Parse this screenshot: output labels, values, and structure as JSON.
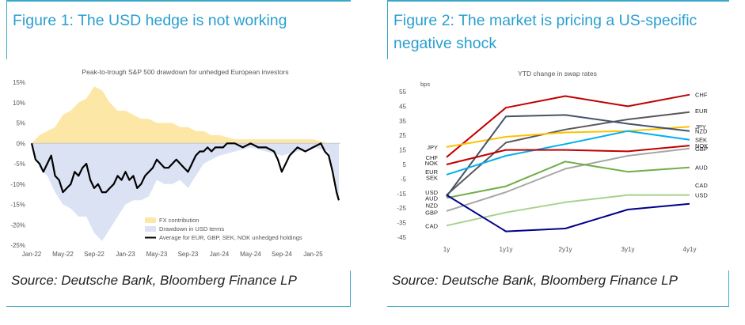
{
  "figure1": {
    "title": "Figure 1: The USD hedge is not working",
    "source": "Source: Deutsche Bank, Bloomberg Finance LP"
  },
  "figure2": {
    "title": "Figure 2: The market is pricing a US-specific negative shock",
    "source": "Source: Deutsche Bank, Bloomberg Finance LP"
  },
  "colors": {
    "accent": "#2a9fd0",
    "fx_contribution": "#fde7a6",
    "drawdown_usd": "#dbe2f3",
    "average": "#000000"
  },
  "chart_data": [
    {
      "type": "area",
      "title": "Peak-to-trough S&P 500 drawdown for unhedged European investors",
      "ylim": [
        -25,
        15
      ],
      "y_ticks": [
        "15%",
        "10%",
        "5%",
        "0%",
        "-5%",
        "-10%",
        "-15%",
        "-20%",
        "-25%"
      ],
      "y_tick_values": [
        15,
        10,
        5,
        0,
        -5,
        -10,
        -15,
        -20,
        -25
      ],
      "x_ticks": [
        "Jan-22",
        "May-22",
        "Sep-22",
        "Jan-23",
        "May-23",
        "Sep-23",
        "Jan-24",
        "May-24",
        "Sep-24",
        "Jan-25"
      ],
      "x_tick_months": [
        0,
        4,
        8,
        12,
        16,
        20,
        24,
        28,
        32,
        36
      ],
      "x_range_months": [
        0,
        39.5
      ],
      "legend": [
        "FX contribution",
        "Drawdown in USD terms",
        "Average for EUR, GBP, SEK, NOK unhedged holdings"
      ],
      "legend_placement": "bottom-center",
      "series": [
        {
          "name": "Average for EUR, GBP, SEK, NOK unhedged holdings",
          "x": [
            0,
            0.5,
            1,
            1.5,
            2,
            2.5,
            3,
            3.5,
            4,
            4.5,
            5,
            5.5,
            6,
            6.5,
            7,
            7.5,
            8,
            8.5,
            9,
            9.5,
            10,
            10.5,
            11,
            11.5,
            12,
            12.5,
            13,
            13.5,
            14,
            14.5,
            15,
            15.5,
            16,
            16.5,
            17,
            17.5,
            18,
            18.5,
            19,
            19.5,
            20,
            20.5,
            21,
            21.5,
            22,
            22.5,
            23,
            23.5,
            24,
            24.5,
            25,
            26,
            27,
            28,
            29,
            30,
            31,
            31.5,
            32,
            33,
            34,
            35,
            36,
            37,
            37.5,
            38,
            38.5,
            39,
            39.3
          ],
          "values": [
            0,
            -4,
            -5,
            -7,
            -5,
            -3,
            -8,
            -9,
            -12,
            -11,
            -10,
            -7,
            -8,
            -6,
            -5,
            -9,
            -11,
            -10,
            -12,
            -12,
            -11,
            -10,
            -8,
            -9,
            -7,
            -9,
            -8,
            -11,
            -10,
            -8,
            -7,
            -6,
            -4,
            -5,
            -6,
            -6,
            -5,
            -4,
            -5,
            -6,
            -7,
            -5,
            -3,
            -2,
            -2,
            -1,
            -2,
            -1,
            -1,
            -1,
            0,
            0,
            -1,
            0,
            -1,
            -1,
            -2,
            -4,
            -7,
            -3,
            -1,
            -2,
            -1,
            0,
            -2,
            -3,
            -7,
            -12,
            -14
          ]
        },
        {
          "name": "FX contribution",
          "x": [
            0,
            1,
            2,
            3,
            4,
            5,
            6,
            7,
            8,
            9,
            10,
            11,
            12,
            13,
            14,
            15,
            16,
            17,
            18,
            19,
            20,
            21,
            22,
            23,
            24,
            26,
            28,
            30,
            32,
            34,
            36,
            38,
            39.3
          ],
          "values": [
            0,
            2,
            3,
            4,
            7,
            8,
            10,
            11,
            14,
            13,
            10,
            8,
            8,
            7,
            6,
            6,
            5,
            5,
            5,
            4,
            4,
            3,
            3,
            2,
            2,
            1,
            1,
            1,
            1,
            1,
            1,
            0,
            0
          ]
        },
        {
          "name": "Drawdown in USD terms",
          "x": [
            0,
            1,
            2,
            3,
            4,
            5,
            6,
            7,
            8,
            9,
            10,
            11,
            12,
            13,
            14,
            15,
            16,
            17,
            18,
            19,
            20,
            21,
            22,
            23,
            24,
            26,
            28,
            30,
            32,
            34,
            36,
            38,
            39.3
          ],
          "values": [
            0,
            -6,
            -8,
            -12,
            -15,
            -16,
            -18,
            -18,
            -22,
            -24,
            -21,
            -18,
            -15,
            -14,
            -14,
            -13,
            -9,
            -10,
            -10,
            -9,
            -11,
            -8,
            -5,
            -4,
            -3,
            -2,
            -1,
            -2,
            -3,
            -2,
            -1,
            -2,
            -14
          ]
        }
      ]
    },
    {
      "type": "line",
      "title": "YTD change in swap rates",
      "ylabel": "bps",
      "categories": [
        "1y",
        "1y1y",
        "2y1y",
        "3y1y",
        "4y1y"
      ],
      "ylim": [
        -45,
        55
      ],
      "y_ticks": [
        "55",
        "45",
        "35",
        "25",
        "15",
        "5",
        "-5",
        "-15",
        "-25",
        "-35",
        "-45"
      ],
      "y_tick_values": [
        55,
        45,
        35,
        25,
        15,
        5,
        -5,
        -15,
        -25,
        -35,
        -45
      ],
      "series": [
        {
          "name": "CHF",
          "color": "#c00000",
          "values": [
            10,
            44,
            52,
            45,
            53
          ]
        },
        {
          "name": "EUR",
          "color": "#595959",
          "values": [
            -16,
            20,
            29,
            36,
            41
          ]
        },
        {
          "name": "JPY",
          "color": "#ffc000",
          "values": [
            17,
            24,
            27,
            28,
            31
          ]
        },
        {
          "name": "NZD",
          "color": "#44546a",
          "values": [
            -17,
            38,
            39,
            33,
            28
          ]
        },
        {
          "name": "SEK",
          "color": "#00b0f0",
          "values": [
            -2,
            11,
            19,
            28,
            22
          ]
        },
        {
          "name": "NOK",
          "color": "#c00000",
          "values": [
            5,
            15,
            15,
            14,
            18
          ]
        },
        {
          "name": "GBP",
          "color": "#a6a6a6",
          "values": [
            -27,
            -14,
            2,
            11,
            16
          ]
        },
        {
          "name": "AUD",
          "color": "#70ad47",
          "values": [
            -18,
            -10,
            7,
            0,
            3
          ]
        },
        {
          "name": "CAD",
          "color": "#a9d18e",
          "values": [
            -37,
            -28,
            -21,
            -16,
            -16
          ]
        },
        {
          "name": "USD",
          "color": "#00008b",
          "values": [
            -16,
            -41,
            -39,
            -26,
            -22
          ]
        }
      ],
      "labels_left": {
        "JPY": "JPY",
        "CHF": "CHF",
        "NOK": "NOK",
        "EUR": "EUR",
        "SEK": "SEK",
        "USD": "USD",
        "AUD": "AUD",
        "NZD": "NZD",
        "GBP": "GBP",
        "CAD": "CAD"
      },
      "labels_right": {
        "CHF": "CHF",
        "EUR": "EUR",
        "JPY": "JPY",
        "NZD": "NZD",
        "SEK": "SEK",
        "NOK": "NOK",
        "GBP": "GBP",
        "AUD": "AUD",
        "CAD": "CAD",
        "USD": "USD"
      }
    }
  ]
}
